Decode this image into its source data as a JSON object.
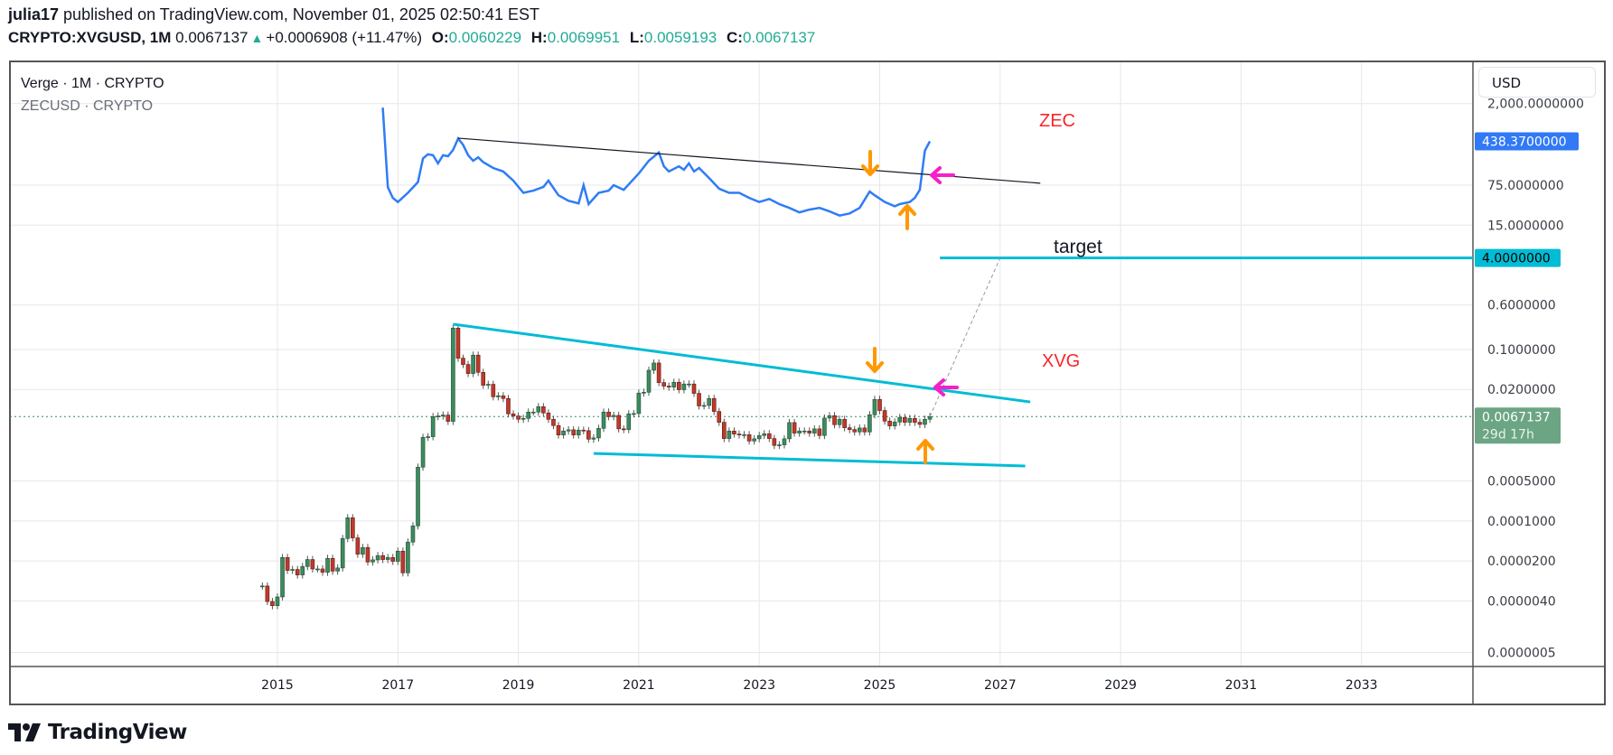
{
  "header": {
    "author": "julia17",
    "published": "published on TradingView.com, November 01, 2025 02:50:41 EST",
    "symbol": "CRYPTO:XVGUSD, 1M",
    "last": "0.0067137",
    "change": "+0.0006908 (+11.47%)",
    "o_label": "O:",
    "o": "0.0060229",
    "h_label": "H:",
    "h": "0.0069951",
    "l_label": "L:",
    "l": "0.0059193",
    "c_label": "C:",
    "c": "0.0067137",
    "change_icon": "triangle-up-icon"
  },
  "legend": {
    "main": "Verge · 1M · CRYPTO",
    "overlay": "ZECUSD · CRYPTO"
  },
  "currency_button": "USD",
  "price_axis": {
    "labels": [
      "2,000.0000000",
      "75.0000000",
      "15.0000000",
      "0.6000000",
      "0.1000000",
      "0.0200000",
      "0.0005000",
      "0.0001000",
      "0.0000200",
      "0.0000040",
      "0.0000005"
    ],
    "zec_last": "438.3700000",
    "target_price": "4.0000000",
    "xvg_last": "0.0067137",
    "countdown": "29d 17h"
  },
  "time_axis": {
    "labels": [
      "2015",
      "2017",
      "2019",
      "2021",
      "2023",
      "2025",
      "2027",
      "2029",
      "2031",
      "2033"
    ]
  },
  "annotations": {
    "zec_label": "ZEC",
    "xvg_label": "XVG",
    "target_label": "target"
  },
  "footer": {
    "brand": "TradingView"
  },
  "colors": {
    "up": "#3d8b5e",
    "down": "#c0392b",
    "zec_line": "#2f7cf6",
    "trend_cyan": "#00bcd4",
    "trend_black": "#131722",
    "annotation_red": "#f7252b",
    "arrow_orange": "#ff9800",
    "arrow_magenta": "#f520c8",
    "last_price_bg": "#6ba583",
    "zec_tag_bg": "#3179f5"
  },
  "chart_data": {
    "type": "candlestick",
    "y_scale": "log",
    "x_range": [
      "2014-09",
      "2034-12"
    ],
    "grid": true,
    "series": [
      {
        "name": "CRYPTO:XVGUSD",
        "kind": "candles",
        "interval": "1M",
        "start": "2014-10",
        "closes": [
          7.3e-06,
          3.9e-06,
          3.3e-06,
          4.7e-06,
          2.3e-05,
          1.37e-05,
          1.42e-05,
          1.14e-05,
          1.6e-05,
          2.12e-05,
          1.45e-05,
          1.45e-05,
          1.27e-05,
          2.22e-05,
          1.33e-05,
          1.51e-05,
          4.95e-05,
          0.000114,
          5.07e-05,
          2.63e-05,
          3.44e-05,
          1.92e-05,
          2.09e-05,
          2.48e-05,
          2.12e-05,
          2.3e-05,
          1.97e-05,
          2.97e-05,
          1.24e-05,
          4.28e-05,
          8.23e-05,
          0.000875,
          0.00291,
          0.00298,
          0.0067,
          0.00687,
          0.00713,
          0.00553,
          0.237,
          0.0705,
          0.0547,
          0.038,
          0.0797,
          0.0399,
          0.0237,
          0.0246,
          0.0149,
          0.0155,
          0.0139,
          0.00749,
          0.00687,
          0.00602,
          0.00624,
          0.00805,
          0.00805,
          0.01,
          0.00777,
          0.00602,
          0.00467,
          0.0032,
          0.00375,
          0.00394,
          0.0032,
          0.00389,
          0.0038,
          0.0027,
          0.00284,
          0.00418,
          0.00805,
          0.0067,
          0.00704,
          0.00409,
          0.00398,
          0.00749,
          0.00758,
          0.0173,
          0.0179,
          0.0434,
          0.0581,
          0.0264,
          0.0229,
          0.022,
          0.0267,
          0.0198,
          0.0249,
          0.0249,
          0.0171,
          0.0103,
          0.0105,
          0.0139,
          0.00825,
          0.00533,
          0.00277,
          0.00375,
          0.00332,
          0.0032,
          0.00324,
          0.00251,
          0.00274,
          0.00313,
          0.00336,
          0.00277,
          0.0021,
          0.00215,
          0.00274,
          0.00527,
          0.00345,
          0.00375,
          0.00375,
          0.00345,
          0.00409,
          0.00313,
          0.00632,
          0.00696,
          0.00484,
          0.00602,
          0.00429,
          0.00398,
          0.00362,
          0.00424,
          0.00362,
          0.00722,
          0.0134,
          0.00856,
          0.0056,
          0.00461,
          0.0054,
          0.00648,
          0.00533,
          0.00624,
          0.00533,
          0.0049,
          0.0060229,
          0.0067137
        ]
      },
      {
        "name": "ZECUSD",
        "kind": "line",
        "points": [
          [
            "2016-10",
            1700
          ],
          [
            "2016-11",
            69
          ],
          [
            "2016-12",
            45
          ],
          [
            "2017-01",
            38
          ],
          [
            "2017-03",
            55
          ],
          [
            "2017-05",
            85
          ],
          [
            "2017-06",
            220
          ],
          [
            "2017-07",
            260
          ],
          [
            "2017-08",
            250
          ],
          [
            "2017-09",
            180
          ],
          [
            "2017-10",
            250
          ],
          [
            "2017-11",
            240
          ],
          [
            "2017-12",
            310
          ],
          [
            "2018-01",
            490
          ],
          [
            "2018-02",
            380
          ],
          [
            "2018-03",
            250
          ],
          [
            "2018-04",
            200
          ],
          [
            "2018-05",
            230
          ],
          [
            "2018-06",
            190
          ],
          [
            "2018-08",
            150
          ],
          [
            "2018-10",
            130
          ],
          [
            "2018-12",
            90
          ],
          [
            "2019-02",
            55
          ],
          [
            "2019-04",
            60
          ],
          [
            "2019-06",
            70
          ],
          [
            "2019-07",
            90
          ],
          [
            "2019-09",
            50
          ],
          [
            "2019-11",
            40
          ],
          [
            "2020-01",
            36
          ],
          [
            "2020-02",
            75
          ],
          [
            "2020-03",
            35
          ],
          [
            "2020-05",
            55
          ],
          [
            "2020-07",
            60
          ],
          [
            "2020-08",
            75
          ],
          [
            "2020-10",
            62
          ],
          [
            "2021-01",
            120
          ],
          [
            "2021-03",
            200
          ],
          [
            "2021-05",
            280
          ],
          [
            "2021-06",
            160
          ],
          [
            "2021-07",
            130
          ],
          [
            "2021-09",
            160
          ],
          [
            "2021-10",
            140
          ],
          [
            "2021-11",
            180
          ],
          [
            "2021-12",
            130
          ],
          [
            "2022-01",
            150
          ],
          [
            "2022-03",
            100
          ],
          [
            "2022-05",
            65
          ],
          [
            "2022-07",
            55
          ],
          [
            "2022-09",
            55
          ],
          [
            "2022-11",
            45
          ],
          [
            "2023-01",
            38
          ],
          [
            "2023-03",
            43
          ],
          [
            "2023-05",
            35
          ],
          [
            "2023-07",
            30
          ],
          [
            "2023-09",
            25
          ],
          [
            "2023-11",
            28
          ],
          [
            "2024-01",
            30
          ],
          [
            "2024-03",
            26
          ],
          [
            "2024-05",
            22
          ],
          [
            "2024-07",
            24
          ],
          [
            "2024-09",
            30
          ],
          [
            "2024-11",
            58
          ],
          [
            "2024-12",
            50
          ],
          [
            "2025-02",
            38
          ],
          [
            "2025-04",
            32
          ],
          [
            "2025-05",
            35
          ],
          [
            "2025-07",
            38
          ],
          [
            "2025-08",
            45
          ],
          [
            "2025-09",
            62
          ],
          [
            "2025-10",
            300
          ],
          [
            "2025-11",
            438.37
          ]
        ]
      }
    ],
    "trendlines": [
      {
        "name": "zec-resistance",
        "from": [
          "2018-01",
          498
        ],
        "to": [
          "2027-09",
          81
        ],
        "color": "#131722"
      },
      {
        "name": "xvg-resistance",
        "from": [
          "2017-12",
          0.277
        ],
        "to": [
          "2027-07",
          0.0121
        ],
        "color": "#00bcd4"
      },
      {
        "name": "xvg-support",
        "from": [
          "2020-04",
          0.00152
        ],
        "to": [
          "2027-06",
          0.000916
        ],
        "color": "#00bcd4"
      },
      {
        "name": "target-level",
        "from": [
          "2026-01",
          4.0
        ],
        "to": [
          "2034-12",
          4.0
        ],
        "color": "#00bcd4"
      },
      {
        "name": "projection",
        "from": [
          "2025-11",
          0.0067137
        ],
        "to": [
          "2027-01",
          4.0
        ],
        "color": "#9598a1",
        "dashed": true
      }
    ]
  }
}
